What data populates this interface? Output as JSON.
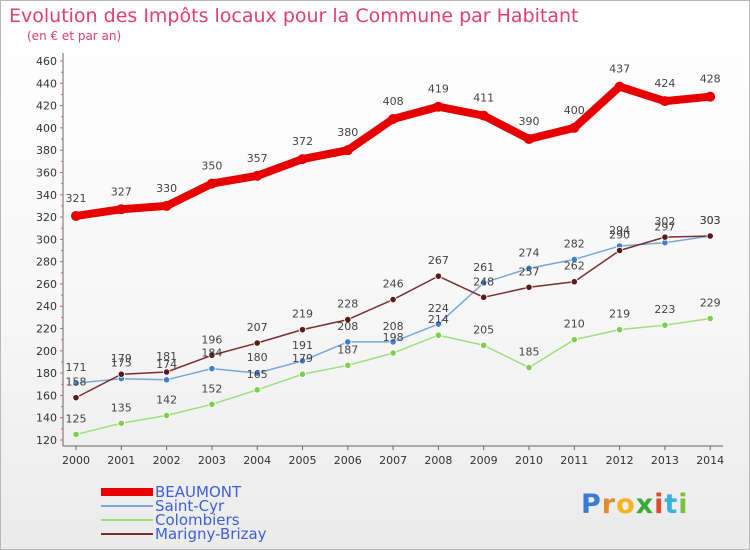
{
  "header": {
    "title": "Evolution des Impôts locaux pour la Commune par Habitant",
    "subtitle": "(en € et par an)"
  },
  "brand": {
    "logo_text": "Proxiti"
  },
  "chart_data": {
    "type": "line",
    "title": "Evolution des Impôts locaux pour la Commune par Habitant",
    "subtitle": "(en € et par an)",
    "x": [
      "2000",
      "2001",
      "2002",
      "2003",
      "2004",
      "2005",
      "2006",
      "2007",
      "2008",
      "2009",
      "2010",
      "2011",
      "2012",
      "2013",
      "2014"
    ],
    "y_ticks": [
      120,
      140,
      160,
      180,
      200,
      220,
      240,
      260,
      280,
      300,
      320,
      340,
      360,
      380,
      400,
      420,
      440,
      460
    ],
    "ylim": [
      120,
      460
    ],
    "grid": false,
    "legend_position": "bottom-left",
    "series": [
      {
        "name": "BEAUMONT",
        "color": "#e60000",
        "point_color": "#e60000",
        "values": [
          321,
          327,
          330,
          350,
          357,
          372,
          380,
          408,
          419,
          411,
          390,
          400,
          437,
          424,
          428
        ]
      },
      {
        "name": "Saint-Cyr",
        "color": "#79a8d8",
        "point_color": "#3f7fcf",
        "values": [
          171,
          175,
          174,
          184,
          180,
          191,
          208,
          208,
          224,
          261,
          274,
          282,
          294,
          297,
          303
        ]
      },
      {
        "name": "Colombiers",
        "color": "#9fdf7c",
        "point_color": "#7ccf4f",
        "values": [
          125,
          135,
          142,
          152,
          165,
          179,
          187,
          198,
          214,
          205,
          185,
          210,
          219,
          223,
          229
        ]
      },
      {
        "name": "Marigny-Brizay",
        "color": "#7a2f2f",
        "point_color": "#5a1a1a",
        "values": [
          158,
          179,
          181,
          196,
          207,
          219,
          228,
          246,
          267,
          248,
          257,
          262,
          290,
          302,
          303
        ]
      }
    ],
    "data_labels": [
      [
        "321",
        "327",
        "330",
        "350",
        "357",
        "372",
        "380",
        "408",
        "419",
        "411",
        "390",
        "400",
        "437",
        "424",
        "428"
      ],
      [
        "171",
        "175",
        "174",
        "184",
        "180",
        "191",
        "208",
        "208",
        "224",
        "261",
        "274",
        "282",
        "294",
        "297",
        "303"
      ],
      [
        "125",
        "135",
        "142",
        "152",
        "165",
        "179",
        "187",
        "198",
        "214",
        "205",
        "185",
        "210",
        "219",
        "223",
        "229"
      ],
      [
        "158",
        "179",
        "181",
        "196",
        "207",
        "219",
        "228",
        "246",
        "267",
        "248",
        "257",
        "262",
        "290",
        "302",
        "303"
      ]
    ]
  },
  "colors": {
    "title": "#e0406a",
    "axis": "#666666",
    "legend_text": "#3f5fd6",
    "tick_marks": "#e06060"
  }
}
